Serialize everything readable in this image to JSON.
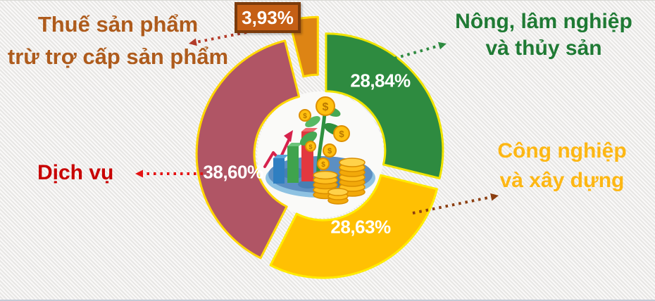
{
  "title": "GDP structure by sector (donut infographic)",
  "chart_data": {
    "type": "pie",
    "variant": "donut",
    "unit": "percent",
    "total": 100,
    "start_angle_deg": 0,
    "direction": "clockwise",
    "hole_ratio": 0.5,
    "exploded": true,
    "value_label_color": "#FFFFFF",
    "segments": [
      {
        "name": "agriculture",
        "label": "Nông, lâm nghiệp và thủy sản",
        "value": 28.84,
        "value_display": "28,84%",
        "color": "#2E8B40",
        "outline_color": "#F0E400"
      },
      {
        "name": "industry",
        "label": "Công nghiệp và xây dựng",
        "value": 28.63,
        "value_display": "28,63%",
        "color": "#FFC003",
        "outline_color": "#FFEB00"
      },
      {
        "name": "services",
        "label": "Dịch vụ",
        "value": 38.6,
        "value_display": "38,60%",
        "color": "#B05565",
        "outline_color": "#FFD700"
      },
      {
        "name": "tax",
        "label": "Thuế sản phẩm trừ trợ cấp sản phẩm",
        "value": 3.93,
        "value_display": "3,93%",
        "color": "#DD8414",
        "outline_color": "#FFD900"
      }
    ]
  },
  "callouts": {
    "tax": {
      "line1": "Thuế sản phẩm",
      "line2": "trừ trợ cấp sản phẩm",
      "text_color": "#AE5B1C",
      "arrow_color": "#B23A28"
    },
    "agriculture": {
      "line1": "Nông, lâm nghiệp",
      "line2": "và thủy sản",
      "text_color": "#1F7A34",
      "arrow_color": "#2E8B40"
    },
    "industry": {
      "line1": "Công nghiệp",
      "line2": "và xây dựng",
      "text_color": "#FDB714",
      "arrow_color": "#8B3E10"
    },
    "services": {
      "text": "Dịch vụ",
      "text_color": "#C80000",
      "arrow_color": "#E51212"
    }
  },
  "badge": {
    "fill": "#C55F15",
    "border_color": "#7B3B0B",
    "text_color": "#FFFFFF"
  },
  "illustration": {
    "alt": "money growth illustration: blue world plate with bar chart, rising trend arrow, money tree and stacks of gold coins"
  }
}
